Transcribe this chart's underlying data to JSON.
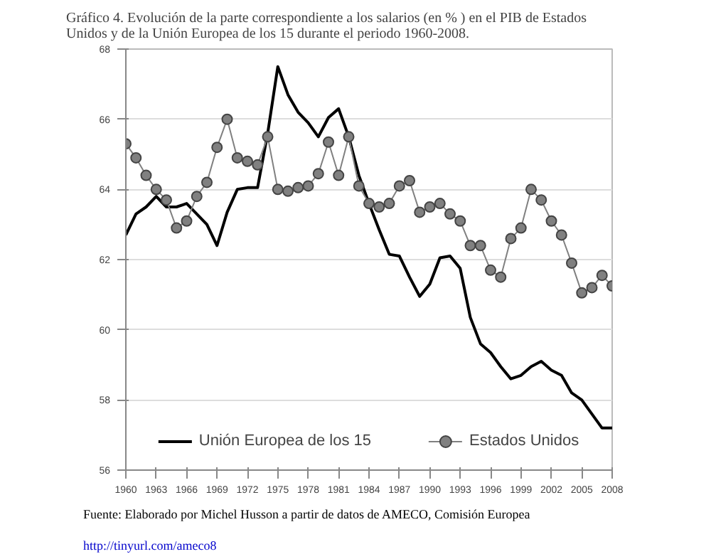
{
  "chart_data": {
    "type": "line",
    "title": "Gráfico 4. Evolución de la parte correspondiente a los salarios (en % ) en el PIB de Estados Unidos y de la Unión Europea de los 15 durante el periodo 1960-2008.",
    "annotations": [
      "Fuente: Elaborado por Michel Husson a partir de datos de AMECO, Comisión Europea",
      "http://tinyurl.com/ameco8"
    ],
    "x": [
      1960,
      1961,
      1962,
      1963,
      1964,
      1965,
      1966,
      1967,
      1968,
      1969,
      1970,
      1971,
      1972,
      1973,
      1974,
      1975,
      1976,
      1977,
      1978,
      1979,
      1980,
      1981,
      1982,
      1983,
      1984,
      1985,
      1986,
      1987,
      1988,
      1989,
      1990,
      1991,
      1992,
      1993,
      1994,
      1995,
      1996,
      1997,
      1998,
      1999,
      2000,
      2001,
      2002,
      2003,
      2004,
      2005,
      2006,
      2007,
      2008
    ],
    "series": [
      {
        "name": "Unión Europea de los 15",
        "color": "#000000",
        "marker": "none",
        "values": [
          62.7,
          63.3,
          63.5,
          63.8,
          63.5,
          63.5,
          63.6,
          63.3,
          63.0,
          62.4,
          63.35,
          64.0,
          64.05,
          64.05,
          65.6,
          67.5,
          66.7,
          66.2,
          65.9,
          65.5,
          66.05,
          66.3,
          65.5,
          64.4,
          63.6,
          62.85,
          62.15,
          62.1,
          61.5,
          60.95,
          61.3,
          62.05,
          62.1,
          61.75,
          60.35,
          59.6,
          59.35,
          58.95,
          58.6,
          58.7,
          58.95,
          59.1,
          58.85,
          58.7,
          58.2,
          58.0,
          57.6,
          57.2,
          57.2
        ]
      },
      {
        "name": "Estados Unidos",
        "color": "#808080",
        "marker": "circle",
        "values": [
          65.3,
          64.9,
          64.4,
          64.0,
          63.7,
          62.9,
          63.1,
          63.8,
          64.2,
          65.2,
          66.0,
          64.9,
          64.8,
          64.7,
          65.5,
          64.0,
          63.95,
          64.05,
          64.1,
          64.45,
          65.35,
          64.4,
          65.5,
          64.1,
          63.6,
          63.5,
          63.6,
          64.1,
          64.25,
          63.35,
          63.5,
          63.6,
          63.3,
          63.1,
          62.4,
          62.4,
          61.7,
          61.5,
          62.6,
          62.9,
          64.0,
          63.7,
          63.1,
          62.7,
          61.9,
          61.05,
          61.2,
          61.55,
          61.25
        ]
      }
    ],
    "xlim": [
      1960,
      2008
    ],
    "xticks": [
      1960,
      1963,
      1966,
      1969,
      1972,
      1975,
      1978,
      1981,
      1984,
      1987,
      1990,
      1993,
      1996,
      1999,
      2002,
      2005,
      2008
    ],
    "ylim": [
      56,
      68
    ],
    "yticks": [
      56,
      58,
      60,
      62,
      64,
      66,
      68
    ],
    "grid": "y",
    "legend": "bottom",
    "line_style": "solid"
  }
}
